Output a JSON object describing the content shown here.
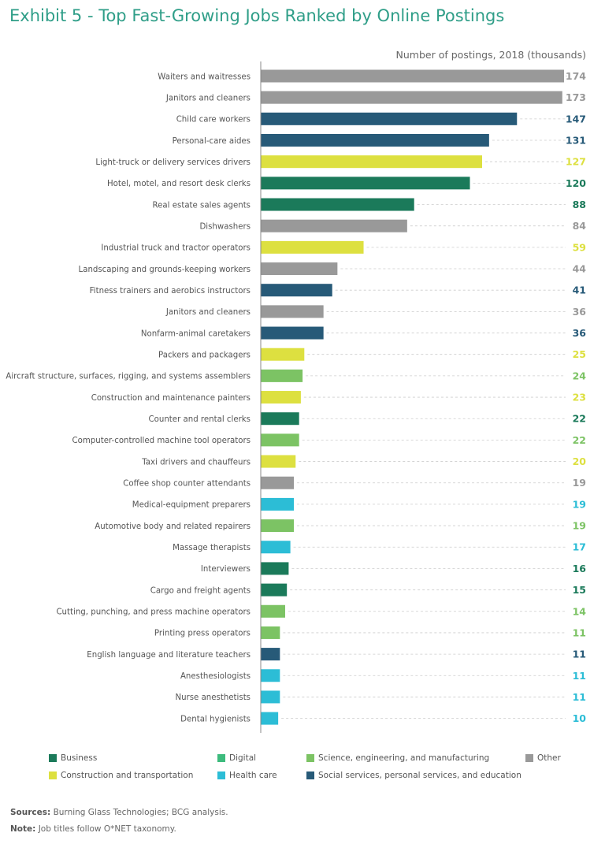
{
  "chart_data": {
    "type": "bar",
    "orientation": "horizontal",
    "title": "Exhibit 5 - Top Fast-Growing Jobs Ranked by Online Postings",
    "value_axis_label": "Number of postings, 2018 (thousands)",
    "xlim": [
      0,
      174
    ],
    "grid": false,
    "legend_placement": "bottom",
    "categories": [
      {
        "key": "business",
        "label": "Business",
        "color": "#1b7a5a"
      },
      {
        "key": "digital",
        "label": "Digital",
        "color": "#3dbb7d"
      },
      {
        "key": "science",
        "label": "Science, engineering, and manufacturing",
        "color": "#7cc364"
      },
      {
        "key": "other",
        "label": "Other",
        "color": "#999999"
      },
      {
        "key": "construction",
        "label": "Construction and transportation",
        "color": "#dde040"
      },
      {
        "key": "health",
        "label": "Health care",
        "color": "#2cbdd6"
      },
      {
        "key": "social",
        "label": "Social services, personal services, and education",
        "color": "#275a78"
      }
    ],
    "bars": [
      {
        "label": "Waiters and waitresses",
        "value": 174,
        "category": "other"
      },
      {
        "label": "Janitors and cleaners",
        "value": 173,
        "category": "other"
      },
      {
        "label": "Child care workers",
        "value": 147,
        "category": "social"
      },
      {
        "label": "Personal-care aides",
        "value": 131,
        "category": "social"
      },
      {
        "label": "Light-truck or delivery services drivers",
        "value": 127,
        "category": "construction"
      },
      {
        "label": "Hotel, motel, and resort desk clerks",
        "value": 120,
        "category": "business"
      },
      {
        "label": "Real estate sales agents",
        "value": 88,
        "category": "business"
      },
      {
        "label": "Dishwashers",
        "value": 84,
        "category": "other"
      },
      {
        "label": "Industrial truck and tractor operators",
        "value": 59,
        "category": "construction"
      },
      {
        "label": "Landscaping and grounds-keeping workers",
        "value": 44,
        "category": "other"
      },
      {
        "label": "Fitness trainers and aerobics instructors",
        "value": 41,
        "category": "social"
      },
      {
        "label": "Janitors and cleaners",
        "value": 36,
        "category": "other"
      },
      {
        "label": "Nonfarm-animal caretakers",
        "value": 36,
        "category": "social"
      },
      {
        "label": "Packers and packagers",
        "value": 25,
        "category": "construction"
      },
      {
        "label": "Aircraft structure, surfaces, rigging, and systems assemblers",
        "value": 24,
        "category": "science"
      },
      {
        "label": "Construction and maintenance painters",
        "value": 23,
        "category": "construction"
      },
      {
        "label": "Counter and rental clerks",
        "value": 22,
        "category": "business"
      },
      {
        "label": "Computer-controlled machine tool operators",
        "value": 22,
        "category": "science"
      },
      {
        "label": "Taxi drivers and chauffeurs",
        "value": 20,
        "category": "construction"
      },
      {
        "label": "Coffee shop counter attendants",
        "value": 19,
        "category": "other"
      },
      {
        "label": "Medical-equipment preparers",
        "value": 19,
        "category": "health"
      },
      {
        "label": "Automotive body and related repairers",
        "value": 19,
        "category": "science"
      },
      {
        "label": "Massage therapists",
        "value": 17,
        "category": "health"
      },
      {
        "label": "Interviewers",
        "value": 16,
        "category": "business"
      },
      {
        "label": "Cargo and freight agents",
        "value": 15,
        "category": "business"
      },
      {
        "label": "Cutting, punching, and press machine operators",
        "value": 14,
        "category": "science"
      },
      {
        "label": "Printing press operators",
        "value": 11,
        "category": "science"
      },
      {
        "label": "English language and literature teachers",
        "value": 11,
        "category": "social"
      },
      {
        "label": "Anesthesiologists",
        "value": 11,
        "category": "health"
      },
      {
        "label": "Nurse anesthetists",
        "value": 11,
        "category": "health"
      },
      {
        "label": "Dental hygienists",
        "value": 10,
        "category": "health"
      }
    ]
  },
  "footnotes": {
    "sources_label": "Sources:",
    "sources_text": "Burning Glass Technologies; BCG analysis.",
    "note_label": "Note:",
    "note_text": "Job titles follow O*NET taxonomy."
  }
}
